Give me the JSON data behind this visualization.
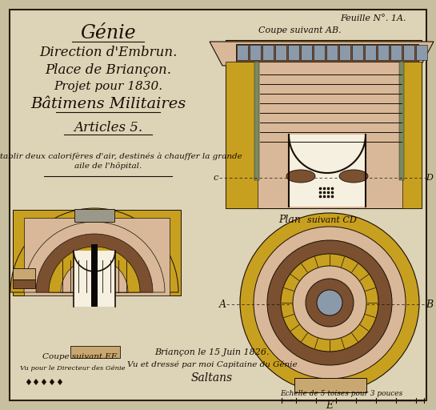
{
  "bg_outer": "#c8bfa0",
  "bg_paper": "#ddd4b8",
  "border_dark": "#2a1e0e",
  "yellow_gold": "#c8a020",
  "yellow_light": "#d4b840",
  "tan": "#c8a870",
  "brown_dark": "#7a5030",
  "brown_med": "#a07040",
  "pink_light": "#d8b898",
  "gray_blue": "#8a9aaa",
  "text_dark": "#1a0e04",
  "green_gray": "#7a8a60",
  "cream": "#f0ead8",
  "near_white": "#f5f0e0",
  "sheet_label": "Feuille N°. 1A.",
  "coupe_ab_label": "Coupe suivant AB.",
  "plan_label": "Plan",
  "suivant_cd_label": "suivant CD",
  "coupe_ef_label": "Coupe suivant EF.",
  "label_c": "c",
  "label_d": "D",
  "label_a": "A",
  "label_b": "B",
  "label_e": "E",
  "scale_text": "Echelle de 5 toises pour 3 pouces",
  "date_text": "Briançon le 15 Juin 1826.",
  "vu_text": "Vu et dressé par moi Capitaine du Génie",
  "sig_text": "Saltans",
  "bottom_left_text": "Vu pour le Directeur des Génie",
  "title_lines": [
    [
      "Génie",
      17,
      42
    ],
    [
      "Direction d'Embrun.",
      12,
      65
    ],
    [
      "Place de Briançon.",
      12,
      87
    ],
    [
      "Projet pour 1830.",
      11,
      108
    ],
    [
      "Bâtimens Militaires",
      14,
      130
    ],
    [
      "Articles 5.",
      12,
      160
    ],
    [
      "Pour établir deux calorifères d'air, destinés à chauffer la grande",
      7.5,
      195
    ],
    [
      "aile de l'hôpital.",
      7.5,
      207
    ]
  ]
}
